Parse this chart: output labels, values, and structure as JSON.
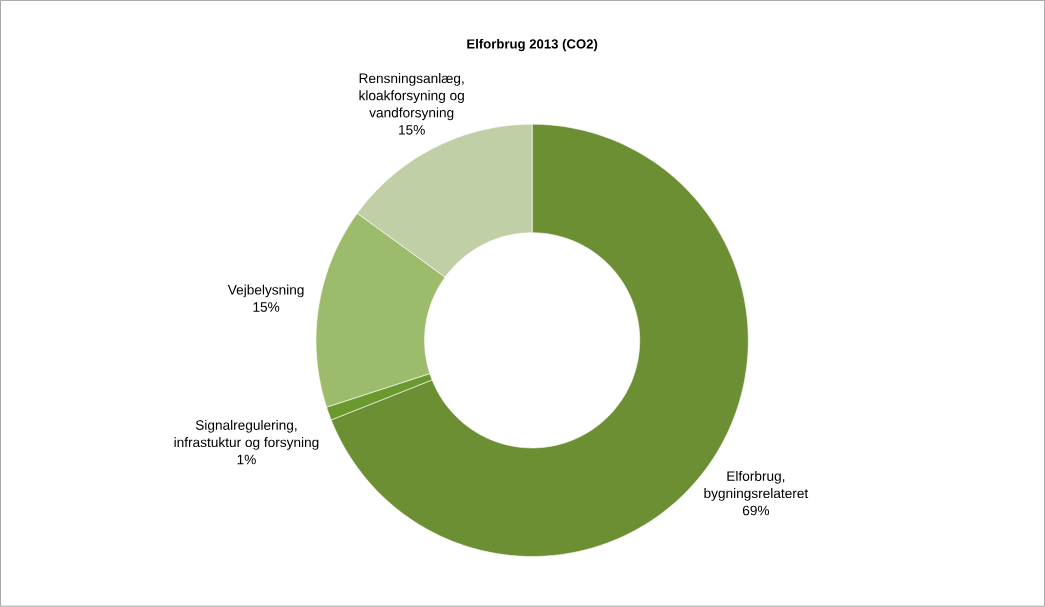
{
  "chart_data": {
    "type": "donut",
    "title": "Elforbrug 2013 (CO2)",
    "categories": [
      "Elforbrug, bygningsrelateret",
      "Signalregulering, infrastuktur og forsyning",
      "Vejbelysning",
      "Rensningsanlæg, kloakforsyning og vandforsyning"
    ],
    "values": [
      69,
      1,
      15,
      15
    ],
    "value_labels": [
      "69%",
      "1%",
      "15%",
      "15%"
    ],
    "colors": [
      "#6c8f33",
      "#6a9a2e",
      "#9cbc6c",
      "#c0cfa6"
    ]
  }
}
